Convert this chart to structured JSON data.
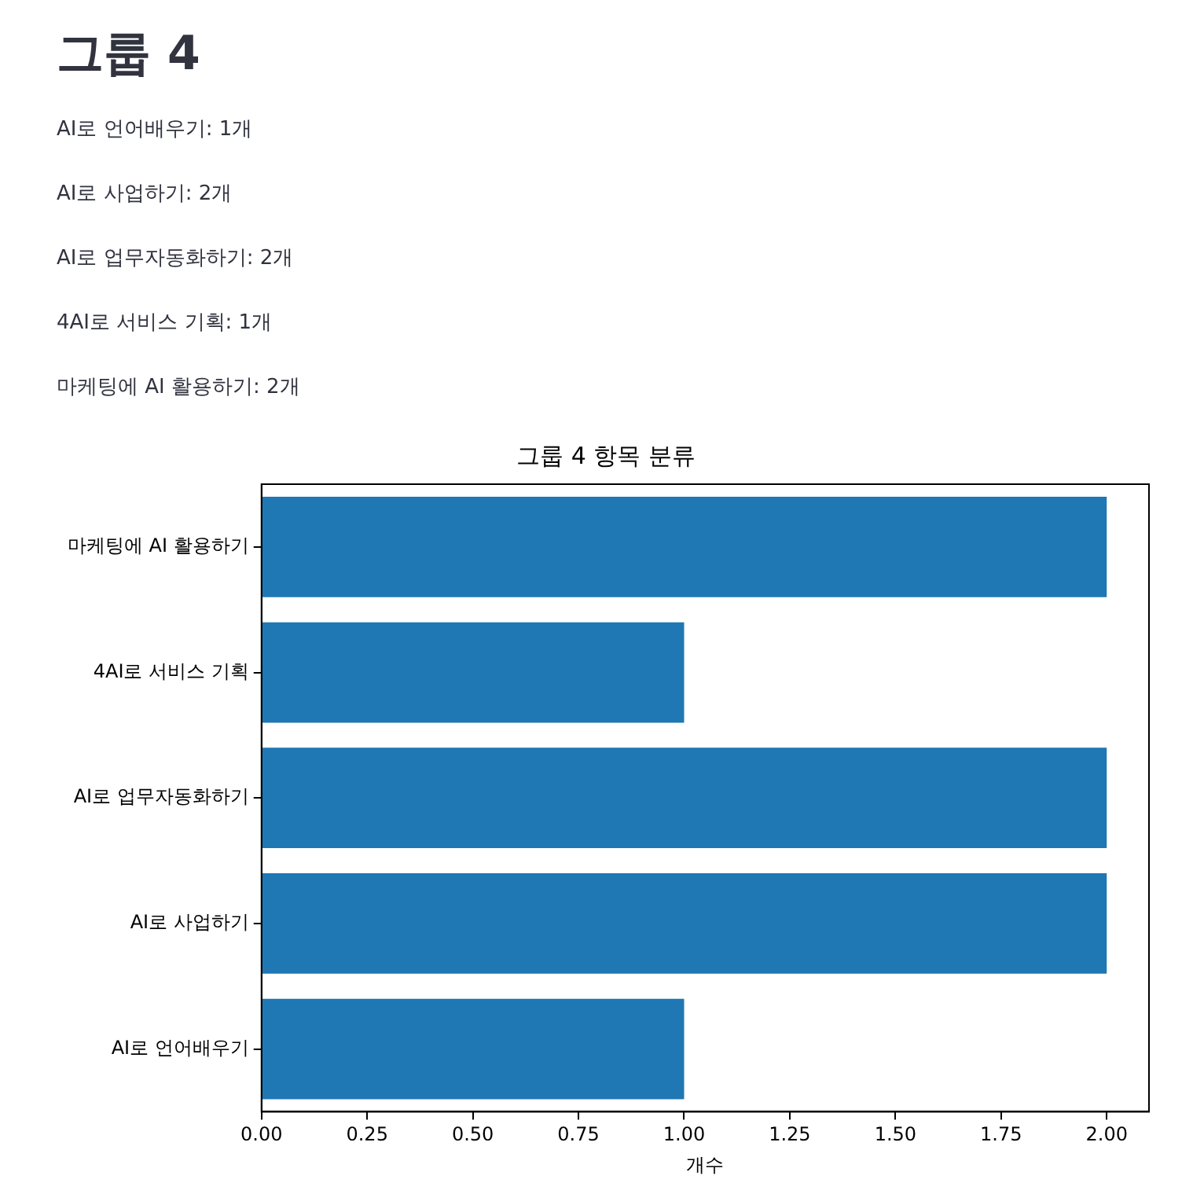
{
  "chart_data": {
    "type": "bar",
    "orientation": "horizontal",
    "title": "그룹 4 항목 분류",
    "xlabel": "개수",
    "annotations": [
      "그룹 4",
      "AI로 언어배우기: 1개",
      "AI로 사업하기: 2개",
      "AI로 업무자동화하기: 2개",
      "4AI로 서비스 기획: 1개",
      "마케팅에 AI 활용하기: 2개"
    ],
    "categories": [
      "마케팅에 AI 활용하기",
      "4AI로 서비스 기획",
      "AI로 업무자동화하기",
      "AI로 사업하기",
      "AI로 언어배우기"
    ],
    "values": [
      2,
      1,
      2,
      2,
      1
    ],
    "color": "#1f77b4",
    "xlim": [
      0,
      2.1
    ],
    "xticks": [
      {
        "value": 0,
        "label": "0.00"
      },
      {
        "value": 0.25,
        "label": "0.25"
      },
      {
        "value": 0.5,
        "label": "0.50"
      },
      {
        "value": 0.75,
        "label": "0.75"
      },
      {
        "value": 1,
        "label": "1.00"
      },
      {
        "value": 1.25,
        "label": "1.25"
      },
      {
        "value": 1.5,
        "label": "1.50"
      },
      {
        "value": 1.75,
        "label": "1.75"
      },
      {
        "value": 2,
        "label": "2.00"
      }
    ],
    "grid": false,
    "legend": false
  }
}
